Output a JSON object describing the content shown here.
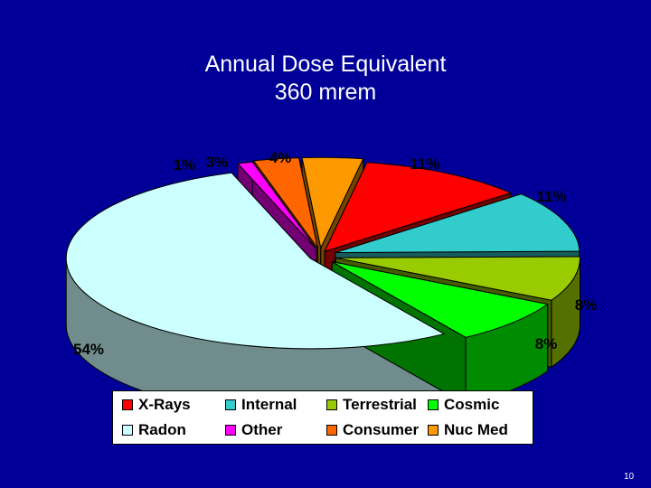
{
  "slide": {
    "title_line1": "Annual Dose Equivalent",
    "title_line2": "360 mrem",
    "page_number": "10",
    "background": "#000099"
  },
  "chart_data": {
    "type": "pie",
    "style": "3d-exploded",
    "title": "Annual Dose Equivalent 360 mrem",
    "slices": [
      {
        "name": "X-Rays",
        "value": 11,
        "label": "11%",
        "color": "#ff0000"
      },
      {
        "name": "Internal",
        "value": 11,
        "label": "11%",
        "color": "#33cccc"
      },
      {
        "name": "Terrestrial",
        "value": 8,
        "label": "8%",
        "color": "#99cc00"
      },
      {
        "name": "Cosmic",
        "value": 8,
        "label": "8%",
        "color": "#00ff00"
      },
      {
        "name": "Radon",
        "value": 54,
        "label": "54%",
        "color": "#ccffff"
      },
      {
        "name": "Other",
        "value": 1,
        "label": "1%",
        "color": "#ff00ff"
      },
      {
        "name": "Consumer",
        "value": 3,
        "label": "3%",
        "color": "#ff6600"
      },
      {
        "name": "Nuc Med",
        "value": 4,
        "label": "4%",
        "color": "#ff9900"
      }
    ],
    "legend_position": "bottom",
    "legend_entries": [
      [
        "X-Rays",
        "Internal",
        "Terrestrial",
        "Cosmic"
      ],
      [
        "Radon",
        "Other",
        "Consumer",
        "Nuc Med"
      ]
    ]
  }
}
